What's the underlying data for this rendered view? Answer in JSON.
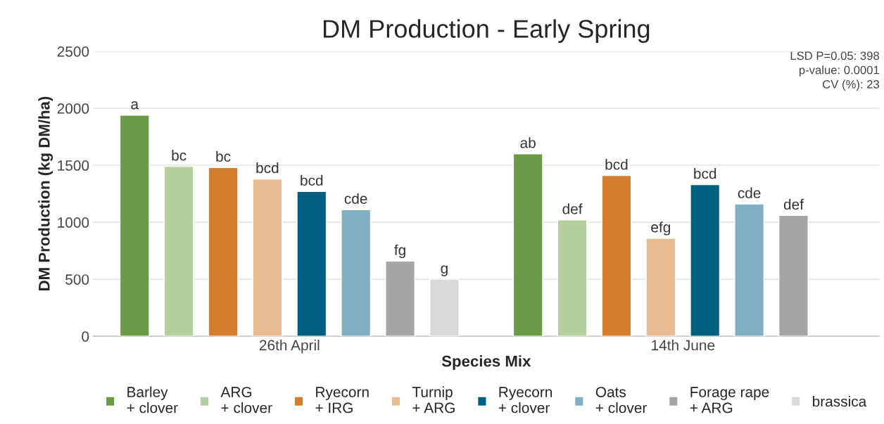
{
  "chart_data": {
    "type": "bar",
    "title": "DM Production - Early Spring",
    "xlabel": "Species Mix",
    "ylabel": "DM Production (kg DM/ha)",
    "categories": [
      "26th April",
      "14th June"
    ],
    "series": [
      {
        "name": "Barley\n+ clover",
        "color": "#6a9a48",
        "values": [
          1940,
          1600
        ],
        "value_labels": [
          "a",
          "ab"
        ]
      },
      {
        "name": "ARG\n+ clover",
        "color": "#b5cfa0",
        "values": [
          1490,
          1020
        ],
        "value_labels": [
          "bc",
          "def"
        ]
      },
      {
        "name": "Ryecorn\n+ IRG",
        "color": "#d47d2f",
        "values": [
          1480,
          1410
        ],
        "value_labels": [
          "bc",
          "bcd"
        ]
      },
      {
        "name": "Turnip\n+ ARG",
        "color": "#e9bb92",
        "values": [
          1380,
          860
        ],
        "value_labels": [
          "bcd",
          "efg"
        ]
      },
      {
        "name": "Ryecorn\n+ clover",
        "color": "#005f7f",
        "values": [
          1270,
          1330
        ],
        "value_labels": [
          "bcd",
          "bcd"
        ]
      },
      {
        "name": "Oats\n+ clover",
        "color": "#7fafc0",
        "values": [
          1110,
          1160
        ],
        "value_labels": [
          "cde",
          "cde"
        ]
      },
      {
        "name": "Forage rape\n+ ARG",
        "color": "#a5a5a5",
        "values": [
          660,
          1060
        ],
        "value_labels": [
          "fg",
          "def"
        ]
      },
      {
        "name": "brassica",
        "color": "#d9d9d9",
        "values": [
          500,
          null
        ],
        "value_labels": [
          "g",
          null
        ]
      }
    ],
    "ylim": [
      0,
      2500
    ],
    "yticks": [
      0,
      500,
      1000,
      1500,
      2000,
      2500
    ],
    "grid": "y",
    "legend": "bottom",
    "annotations": [
      "LSD P=0.05: 398",
      "p-value: 0.0001",
      "CV (%): 23"
    ]
  }
}
